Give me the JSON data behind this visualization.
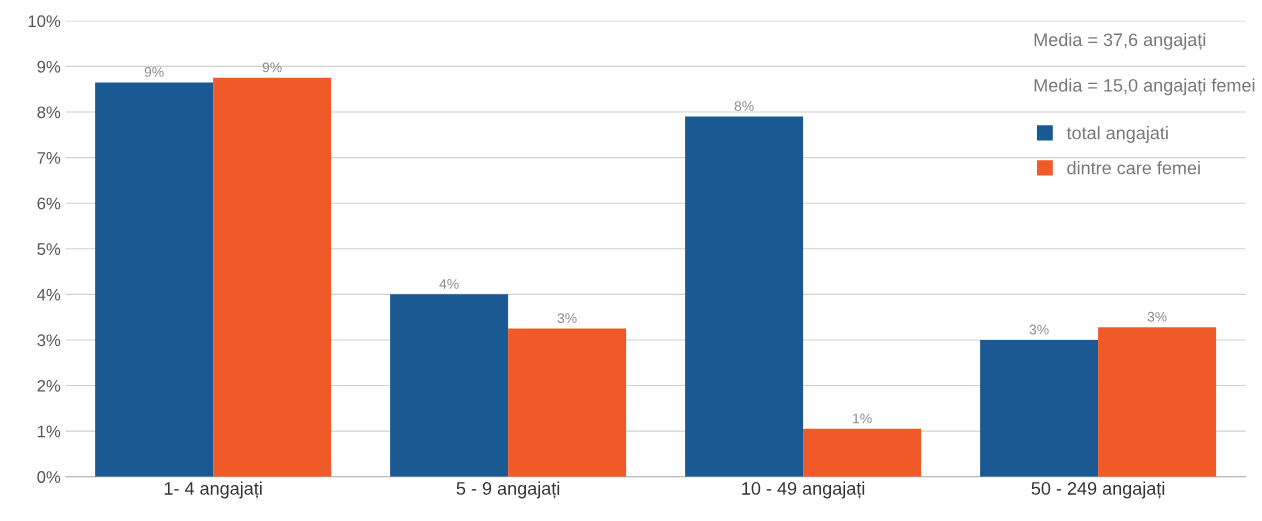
{
  "chart_data": {
    "type": "bar",
    "categories": [
      "1- 4 angajați",
      "5 - 9 angajați",
      "10 - 49 angajați",
      "50 - 249 angajați"
    ],
    "series": [
      {
        "name": "total angajati",
        "color": "#1b5993",
        "values": [
          8.65,
          4.0,
          7.9,
          3.0
        ],
        "value_labels": [
          "9%",
          "4%",
          "8%",
          "3%"
        ]
      },
      {
        "name": "dintre care femei",
        "color": "#f05a28",
        "values": [
          8.75,
          3.25,
          1.05,
          3.28
        ],
        "value_labels": [
          "9%",
          "3%",
          "1%",
          "3%"
        ]
      }
    ],
    "ylim": [
      0,
      10
    ],
    "yticks": [
      {
        "value": 0,
        "label": "0%"
      },
      {
        "value": 1,
        "label": "1%"
      },
      {
        "value": 2,
        "label": "2%"
      },
      {
        "value": 3,
        "label": "3%"
      },
      {
        "value": 4,
        "label": "4%"
      },
      {
        "value": 5,
        "label": "5%"
      },
      {
        "value": 6,
        "label": "6%"
      },
      {
        "value": 7,
        "label": "7%"
      },
      {
        "value": 8,
        "label": "8%"
      },
      {
        "value": 9,
        "label": "9%"
      },
      {
        "value": 10,
        "label": "10%"
      }
    ],
    "grid": "y",
    "legend": "top right",
    "annotations": [
      "Media = 37,6 angajați",
      "Media = 15,0 angajați femei"
    ]
  }
}
